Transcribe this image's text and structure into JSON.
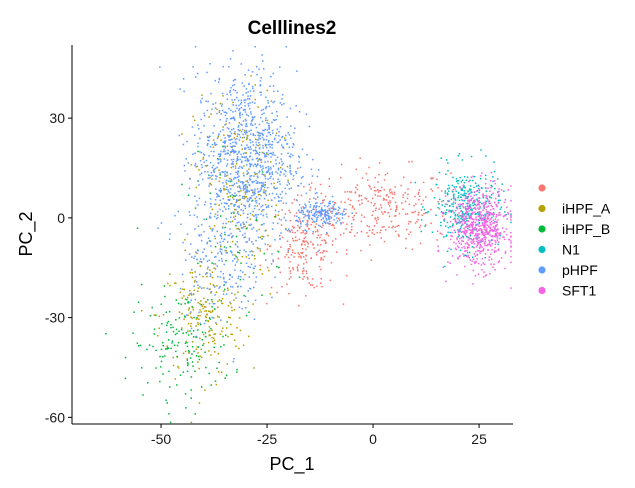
{
  "chart_data": {
    "type": "scatter",
    "title": "Celllines2",
    "xlabel": "PC_1",
    "ylabel": "PC_2",
    "xlim": [
      -71,
      33
    ],
    "ylim": [
      -62,
      52
    ],
    "x_ticks": [
      -50,
      -25,
      0,
      25
    ],
    "y_ticks": [
      -60,
      -30,
      0,
      30
    ],
    "x_tick_labels": [
      "-50",
      "-25",
      "0",
      "25"
    ],
    "y_tick_labels": [
      "-60",
      "-30",
      "0",
      "30"
    ],
    "grid": false,
    "legend_position": "right",
    "series": [
      {
        "name": "",
        "color": "#F8766D",
        "n": 500,
        "clusters": [
          {
            "x": 2,
            "y": 3,
            "sx": 8,
            "sy": 6,
            "w": 0.55
          },
          {
            "x": -16,
            "y": -8,
            "sx": 4,
            "sy": 7,
            "w": 0.45
          }
        ]
      },
      {
        "name": "iHPF_A",
        "color": "#B79F00",
        "n": 400,
        "clusters": [
          {
            "x": -40,
            "y": -30,
            "sx": 5,
            "sy": 9,
            "w": 0.5
          },
          {
            "x": -32,
            "y": 10,
            "sx": 5,
            "sy": 14,
            "w": 0.5
          }
        ]
      },
      {
        "name": "iHPF_B",
        "color": "#00BA38",
        "n": 220,
        "clusters": [
          {
            "x": -45,
            "y": -38,
            "sx": 6,
            "sy": 8,
            "w": 0.7
          },
          {
            "x": -33,
            "y": -5,
            "sx": 6,
            "sy": 12,
            "w": 0.3
          }
        ]
      },
      {
        "name": "N1",
        "color": "#00BFC4",
        "n": 350,
        "clusters": [
          {
            "x": 22,
            "y": 3,
            "sx": 4,
            "sy": 6,
            "w": 1
          }
        ]
      },
      {
        "name": "pHPF",
        "color": "#619CFF",
        "n": 1400,
        "clusters": [
          {
            "x": -30,
            "y": 18,
            "sx": 6,
            "sy": 13,
            "w": 0.72
          },
          {
            "x": -36,
            "y": -12,
            "sx": 5,
            "sy": 10,
            "w": 0.15
          },
          {
            "x": -12,
            "y": 1,
            "sx": 3,
            "sy": 2,
            "w": 0.13
          }
        ]
      },
      {
        "name": "SFT1",
        "color": "#F564E3",
        "n": 650,
        "clusters": [
          {
            "x": 25,
            "y": -3,
            "sx": 3.5,
            "sy": 6,
            "w": 1
          }
        ]
      }
    ]
  }
}
